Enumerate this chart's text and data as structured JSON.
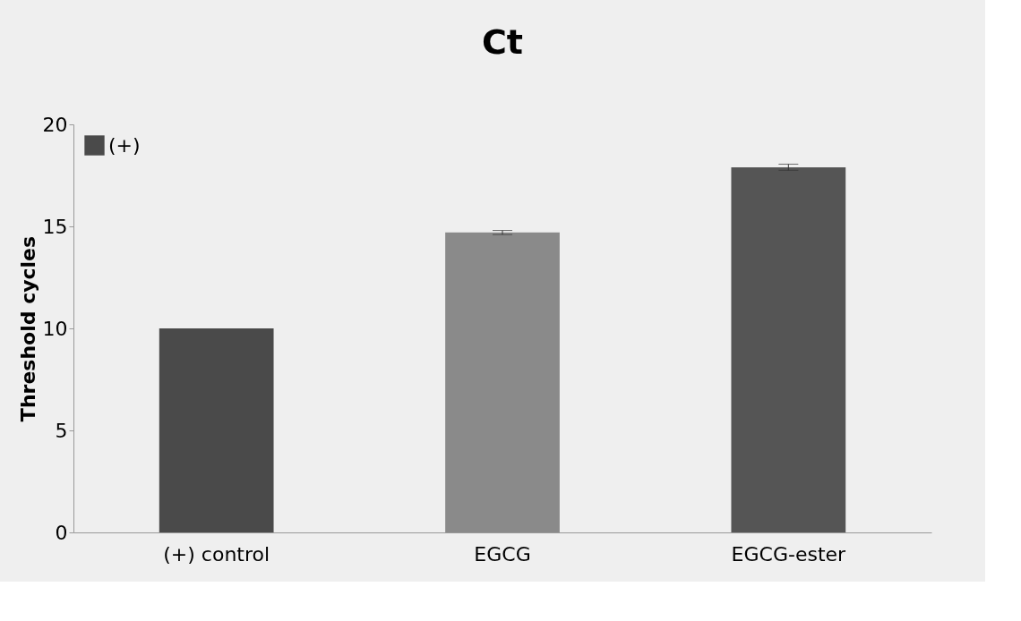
{
  "chart_data": {
    "type": "bar",
    "title": "Ct",
    "ylabel": "Threshold cycles",
    "categories": [
      "(+) control",
      "EGCG",
      "EGCG-ester"
    ],
    "series": [
      {
        "name": "(+)",
        "values": [
          10.0,
          14.7,
          17.9
        ],
        "errors": [
          null,
          0.1,
          0.15
        ]
      }
    ],
    "colors": [
      "#4a4a4a",
      "#8a8a8a",
      "#555555"
    ],
    "ylim": [
      0,
      20
    ],
    "yticks": [
      0,
      5,
      10,
      15,
      20
    ],
    "grid": false,
    "legend": "top left"
  }
}
